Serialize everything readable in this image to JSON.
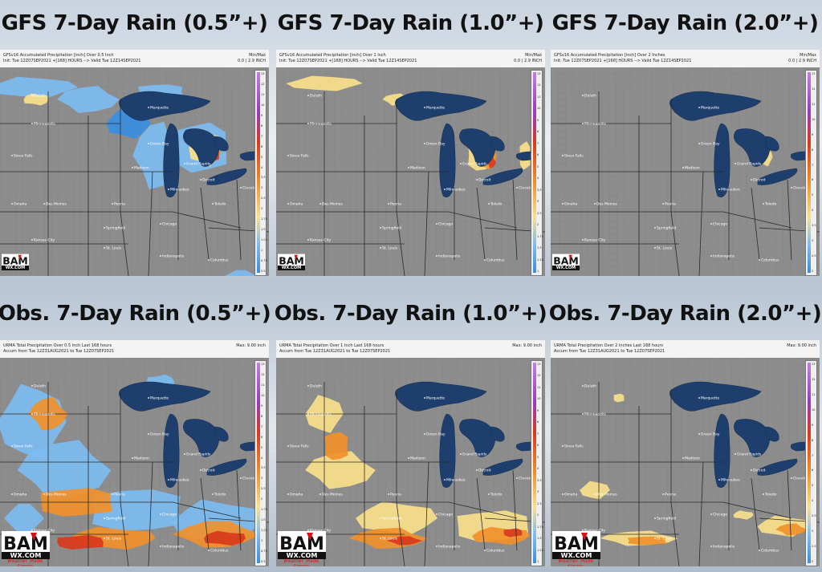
{
  "panels": [
    {
      "title": "GFS 7-Day Rain (0.5”+)",
      "header_line1": "GFSv16 Accumulated Precipitation [inch] Over 0.5 Inch",
      "header_line2": "Init: Tue 12Z07SEP2021 +[168] HOURS --> Valid Tue 12Z14SEP2021",
      "header_right1": "Min/Max",
      "header_right2": "0.0 | 2.9 INCH",
      "colorbar_ticks": [
        "13",
        "12",
        "11",
        "10",
        "9",
        "8",
        "7",
        "6",
        "5",
        "4",
        "3.5",
        "3",
        "2.5",
        "2",
        "1.75",
        "1.5",
        "1.25",
        "1",
        "0.75",
        "0.5"
      ],
      "coverage": "high",
      "model": "gfs"
    },
    {
      "title": "GFS 7-Day Rain (1.0”+)",
      "header_line1": "GFSv16 Accumulated Precipitation [inch] Over 1 Inch",
      "header_line2": "Init: Tue 12Z07SEP2021 +[168] HOURS --> Valid Tue 12Z14SEP2021",
      "header_right1": "Min/Max",
      "header_right2": "0.0 | 2.9 INCH",
      "colorbar_ticks": [
        "13",
        "12",
        "11",
        "10",
        "9",
        "8",
        "7",
        "6",
        "5",
        "4",
        "3.5",
        "3",
        "2.5",
        "2",
        "1.75",
        "1.5",
        "1.25",
        "1"
      ],
      "coverage": "mid",
      "model": "gfs"
    },
    {
      "title": "GFS 7-Day Rain (2.0”+)",
      "header_line1": "GFSv16 Accumulated Precipitation [inch] Over 2 Inches",
      "header_line2": "Init: Tue 12Z07SEP2021 +[168] HOURS --> Valid Tue 12Z14SEP2021",
      "header_right1": "Min/Max",
      "header_right2": "0.0 | 2.9 INCH",
      "colorbar_ticks": [
        "13",
        "12",
        "11",
        "10",
        "9",
        "8",
        "7",
        "6",
        "5",
        "4",
        "3.5",
        "3",
        "2.5",
        "2"
      ],
      "coverage": "low",
      "model": "gfs"
    },
    {
      "title": "Obs. 7-Day Rain (0.5”+)",
      "header_line1": "URMA Total Precipitation Over 0.5 Inch Last 168 hours",
      "header_line2": "Accum from Tue 12Z31AUG2021 to Tue 12Z07SEP2021",
      "header_right1": "Max: 9.00 inch",
      "header_right2": "",
      "colorbar_ticks": [
        "13",
        "12",
        "11",
        "10",
        "9",
        "8",
        "7",
        "6",
        "5",
        "4",
        "3.5",
        "3",
        "2.5",
        "2",
        "1.75",
        "1.5",
        "1.25",
        "1",
        "0.75",
        "0.5"
      ],
      "coverage": "high",
      "model": "obs"
    },
    {
      "title": "Obs. 7-Day Rain (1.0”+)",
      "header_line1": "URMA Total Precipitation Over 1 Inch Last 168 hours",
      "header_line2": "Accum from Tue 12Z31AUG2021 to Tue 12Z07SEP2021",
      "header_right1": "Max: 9.00 inch",
      "header_right2": "",
      "colorbar_ticks": [
        "13",
        "12",
        "11",
        "10",
        "9",
        "8",
        "7",
        "6",
        "5",
        "4",
        "3.5",
        "3",
        "2.5",
        "2",
        "1.75",
        "1.5",
        "1.25",
        "1"
      ],
      "coverage": "mid",
      "model": "obs"
    },
    {
      "title": "Obs. 7-Day Rain (2.0”+)",
      "header_line1": "URMA Total Precipitation Over 2 Inches Last 168 hours",
      "header_line2": "Accum from Tue 12Z31AUG2021 to Tue 12Z07SEP2021",
      "header_right1": "Max: 9.00 inch",
      "header_right2": "",
      "colorbar_ticks": [
        "13",
        "12",
        "11",
        "10",
        "9",
        "8",
        "7",
        "6",
        "5",
        "4",
        "3.5",
        "3",
        "2.5",
        "2"
      ],
      "coverage": "low",
      "model": "obs"
    }
  ],
  "cities": [
    "Duluth",
    "Minneapolis",
    "Sioux Falls",
    "Des Moines",
    "Milwaukee",
    "Chicago",
    "Detroit",
    "Grand Rapids",
    "Green Bay",
    "Marquette",
    "Omaha",
    "Kansas City",
    "St. Louis",
    "Indianapolis",
    "Columbus",
    "Toledo",
    "Cleveland",
    "Springfield",
    "Peoria",
    "Madison"
  ],
  "logo": {
    "text_bam": "BAM",
    "text_wx": "WX.COM",
    "text_tag": "Weather. Made. Simple."
  },
  "colors": {
    "lakes": "#1e3f6e",
    "land": "#8d8d8d",
    "light_blue": "#7dbcf0",
    "blue": "#3a8ee0",
    "yellow": "#f8e08a",
    "orange": "#f0902a",
    "red": "#d83a1c",
    "purple": "#9a3ac0"
  }
}
